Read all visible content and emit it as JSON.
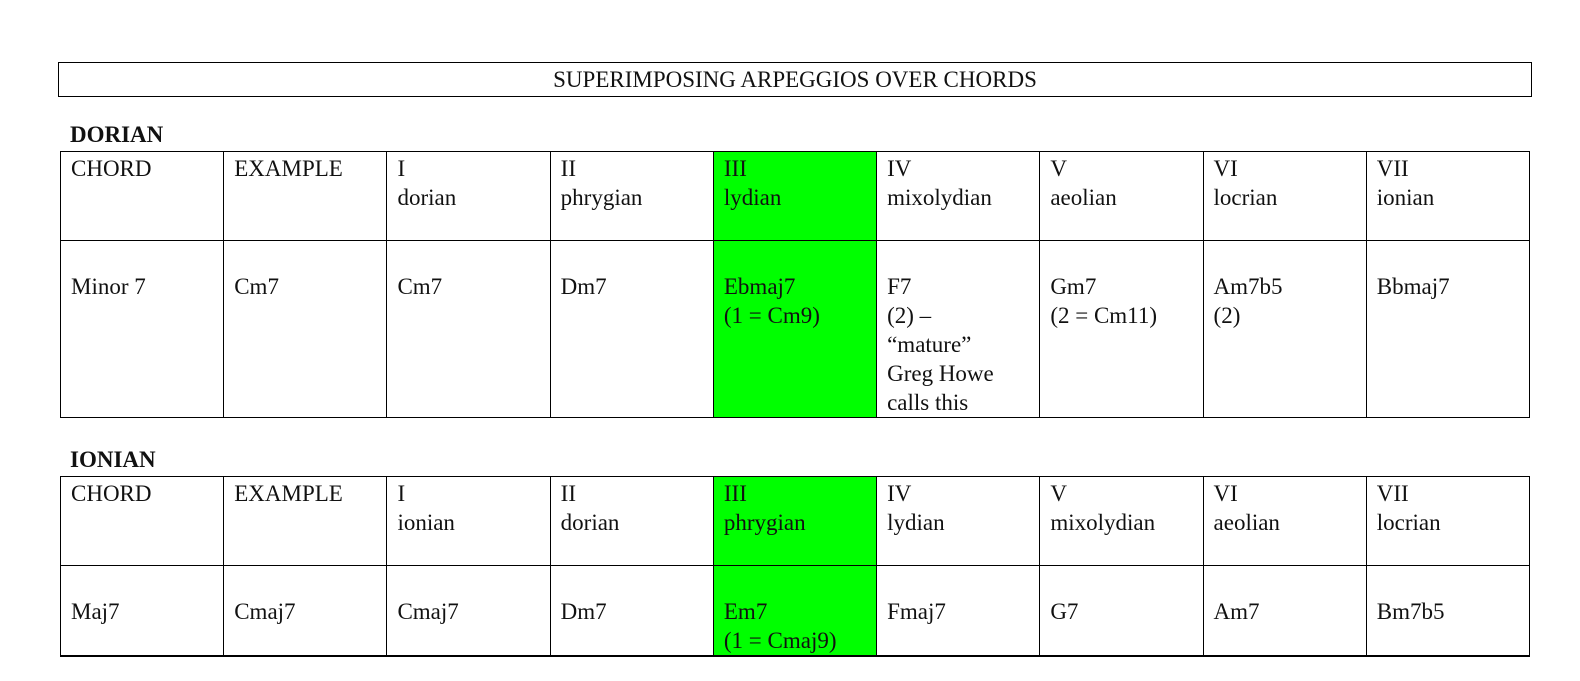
{
  "title": "SUPERIMPOSING ARPEGGIOS OVER CHORDS",
  "highlight_color": "#00ff00",
  "tables": [
    {
      "label": "DORIAN",
      "highlight_column": 4,
      "header": [
        "CHORD",
        "EXAMPLE",
        "I\ndorian",
        "II\nphrygian",
        "III\nlydian",
        "IV\nmixolydian",
        "V\naeolian",
        "VI\nlocrian",
        "VII\nionian"
      ],
      "row": [
        "Minor 7",
        "Cm7",
        "Cm7",
        "Dm7",
        "Ebmaj7\n(1 = Cm9)",
        "F7\n(2) –\n“mature”\nGreg Howe\ncalls this",
        "Gm7\n(2 = Cm11)",
        "Am7b5\n(2)",
        "Bbmaj7"
      ]
    },
    {
      "label": "IONIAN",
      "highlight_column": 4,
      "header": [
        "CHORD",
        "EXAMPLE",
        "I\nionian",
        "II\ndorian",
        "III\nphrygian",
        "IV\nlydian",
        "V\nmixolydian",
        "VI\naeolian",
        "VII\nlocrian"
      ],
      "row": [
        "Maj7",
        "Cmaj7",
        "Cmaj7",
        "Dm7",
        "Em7\n(1 = Cmaj9)",
        "Fmaj7",
        "G7",
        "Am7",
        "Bm7b5"
      ]
    }
  ]
}
